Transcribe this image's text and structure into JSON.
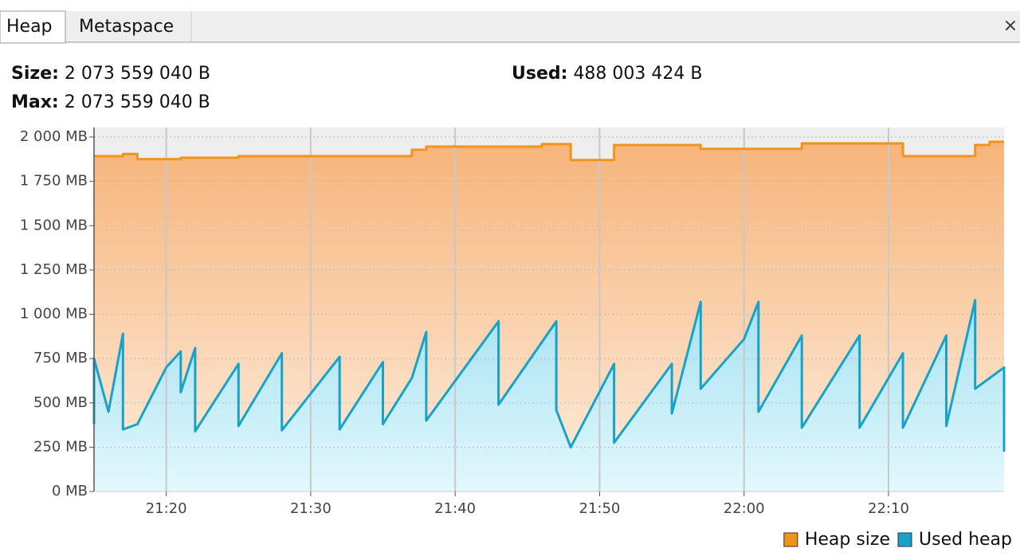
{
  "tabs": [
    "Heap",
    "Metaspace"
  ],
  "close": "×",
  "stats": [
    {
      "label": "Size:",
      "value": "2 073 559 040 B"
    },
    {
      "label": "Used:",
      "value": "488 003 424 B"
    },
    {
      "label": "Max:",
      "value": "2 073 559 040 B"
    }
  ],
  "chart_data": {
    "type": "area",
    "xlim": [
      "21:15",
      "22:18"
    ],
    "xticks": [
      "21:20",
      "21:30",
      "21:40",
      "21:50",
      "22:00",
      "22:10"
    ],
    "ylim": [
      0,
      2054
    ],
    "yticks": [
      {
        "value": 0,
        "label": "0 MB"
      },
      {
        "value": 250,
        "label": "250 MB"
      },
      {
        "value": 500,
        "label": "500 MB"
      },
      {
        "value": 750,
        "label": "750 MB"
      },
      {
        "value": 1000,
        "label": "1 000 MB"
      },
      {
        "value": 1250,
        "label": "1 250 MB"
      },
      {
        "value": 1500,
        "label": "1 500 MB"
      },
      {
        "value": 1750,
        "label": "1 750 MB"
      },
      {
        "value": 2000,
        "label": "2 000 MB"
      }
    ],
    "grid": true,
    "legend": "bottom-right",
    "series": [
      {
        "name": "Heap size",
        "color": "#f0941c",
        "fill": [
          "#f6b47a",
          "#fdeedf"
        ],
        "x": [
          "21:15",
          "21:17",
          "21:17",
          "21:18",
          "21:18",
          "21:21",
          "21:21",
          "21:25",
          "21:25",
          "21:37",
          "21:37",
          "21:38",
          "21:38",
          "21:46",
          "21:46",
          "21:48",
          "21:48",
          "21:51",
          "21:51",
          "21:57",
          "21:57",
          "22:04",
          "22:04",
          "22:11",
          "22:11",
          "22:16",
          "22:16",
          "22:17",
          "22:17",
          "22:18"
        ],
        "values": [
          1892,
          1892,
          1905,
          1905,
          1875,
          1875,
          1883,
          1883,
          1892,
          1892,
          1928,
          1928,
          1946,
          1946,
          1960,
          1960,
          1870,
          1870,
          1955,
          1955,
          1933,
          1933,
          1964,
          1964,
          1892,
          1892,
          1955,
          1955,
          1973,
          1973
        ]
      },
      {
        "name": "Used heap",
        "color": "#17a3c9",
        "fill": [
          "#a6e1f1",
          "#e2f8fd"
        ],
        "x": [
          "21:15",
          "21:15",
          "21:16",
          "21:17",
          "21:17",
          "21:18",
          "21:20",
          "21:21",
          "21:21",
          "21:22",
          "21:22",
          "21:25",
          "21:25",
          "21:28",
          "21:28",
          "21:32",
          "21:32",
          "21:35",
          "21:35",
          "21:37",
          "21:38",
          "21:38",
          "21:43",
          "21:43",
          "21:47",
          "21:47",
          "21:48",
          "21:51",
          "21:51",
          "21:55",
          "21:55",
          "21:57",
          "21:57",
          "22:00",
          "22:01",
          "22:01",
          "22:04",
          "22:04",
          "22:08",
          "22:08",
          "22:11",
          "22:11",
          "22:14",
          "22:14",
          "22:16",
          "22:16",
          "22:18",
          "22:18",
          "22:18"
        ],
        "values": [
          380,
          750,
          450,
          890,
          350,
          380,
          700,
          790,
          560,
          810,
          340,
          720,
          370,
          780,
          345,
          760,
          350,
          730,
          380,
          640,
          900,
          400,
          960,
          490,
          960,
          460,
          250,
          720,
          275,
          720,
          440,
          1070,
          580,
          860,
          1070,
          450,
          880,
          360,
          880,
          360,
          780,
          360,
          880,
          370,
          1080,
          580,
          700,
          230,
          460
        ]
      }
    ]
  }
}
